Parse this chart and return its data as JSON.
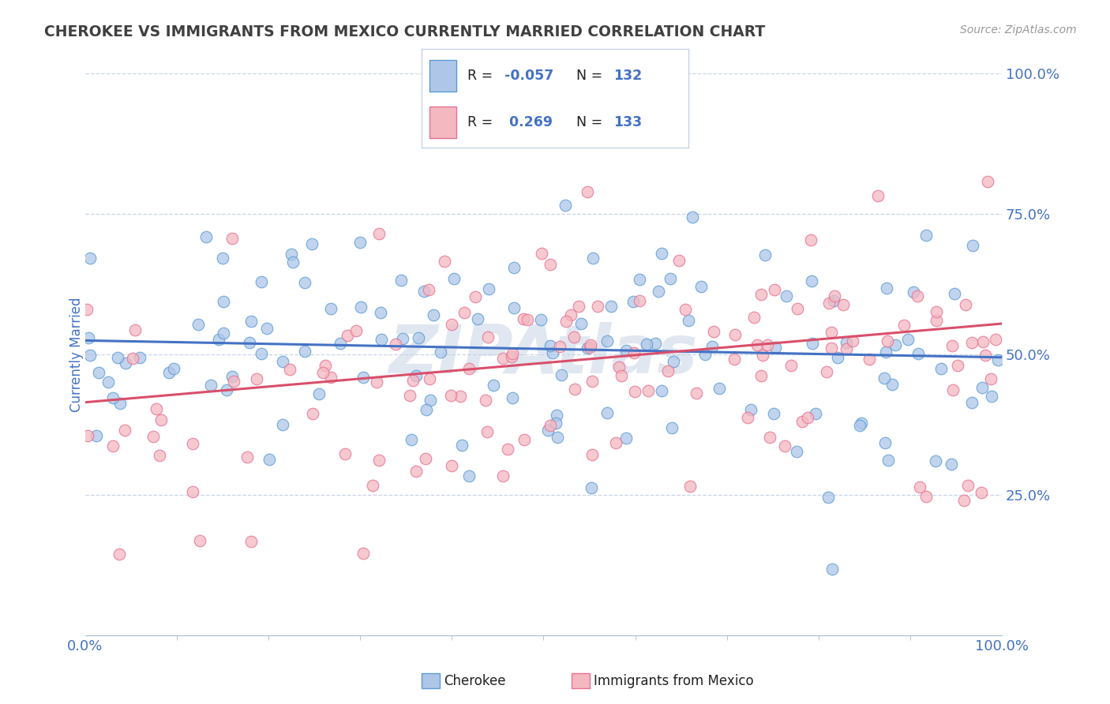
{
  "title": "CHEROKEE VS IMMIGRANTS FROM MEXICO CURRENTLY MARRIED CORRELATION CHART",
  "source": "Source: ZipAtlas.com",
  "ylabel": "Currently Married",
  "xlim": [
    0.0,
    1.0
  ],
  "ylim": [
    0.0,
    1.0
  ],
  "ytick_values": [
    0.25,
    0.5,
    0.75,
    1.0
  ],
  "ytick_labels": [
    "25.0%",
    "50.0%",
    "75.0%",
    "100.0%"
  ],
  "xtick_values": [
    0.0,
    1.0
  ],
  "xtick_labels": [
    "0.0%",
    "100.0%"
  ],
  "cherokee_color": "#aec6e8",
  "cherokee_edge_color": "#5b9bd5",
  "mexico_color": "#f4b8c1",
  "mexico_edge_color": "#e87090",
  "cherokee_R": -0.057,
  "cherokee_N": 132,
  "mexico_R": 0.269,
  "mexico_N": 133,
  "trend_cherokee_color": "#4472c4",
  "trend_mexico_color": "#d94f6b",
  "title_color": "#404040",
  "axis_label_color": "#4472c4",
  "tick_color": "#4472c4",
  "grid_color": "#c8d4e8",
  "background_color": "#ffffff",
  "watermark": "ZIPAtlas",
  "cherokee_trend_start": 0.525,
  "cherokee_trend_end": 0.495,
  "mexico_trend_start": 0.415,
  "mexico_trend_end": 0.555
}
